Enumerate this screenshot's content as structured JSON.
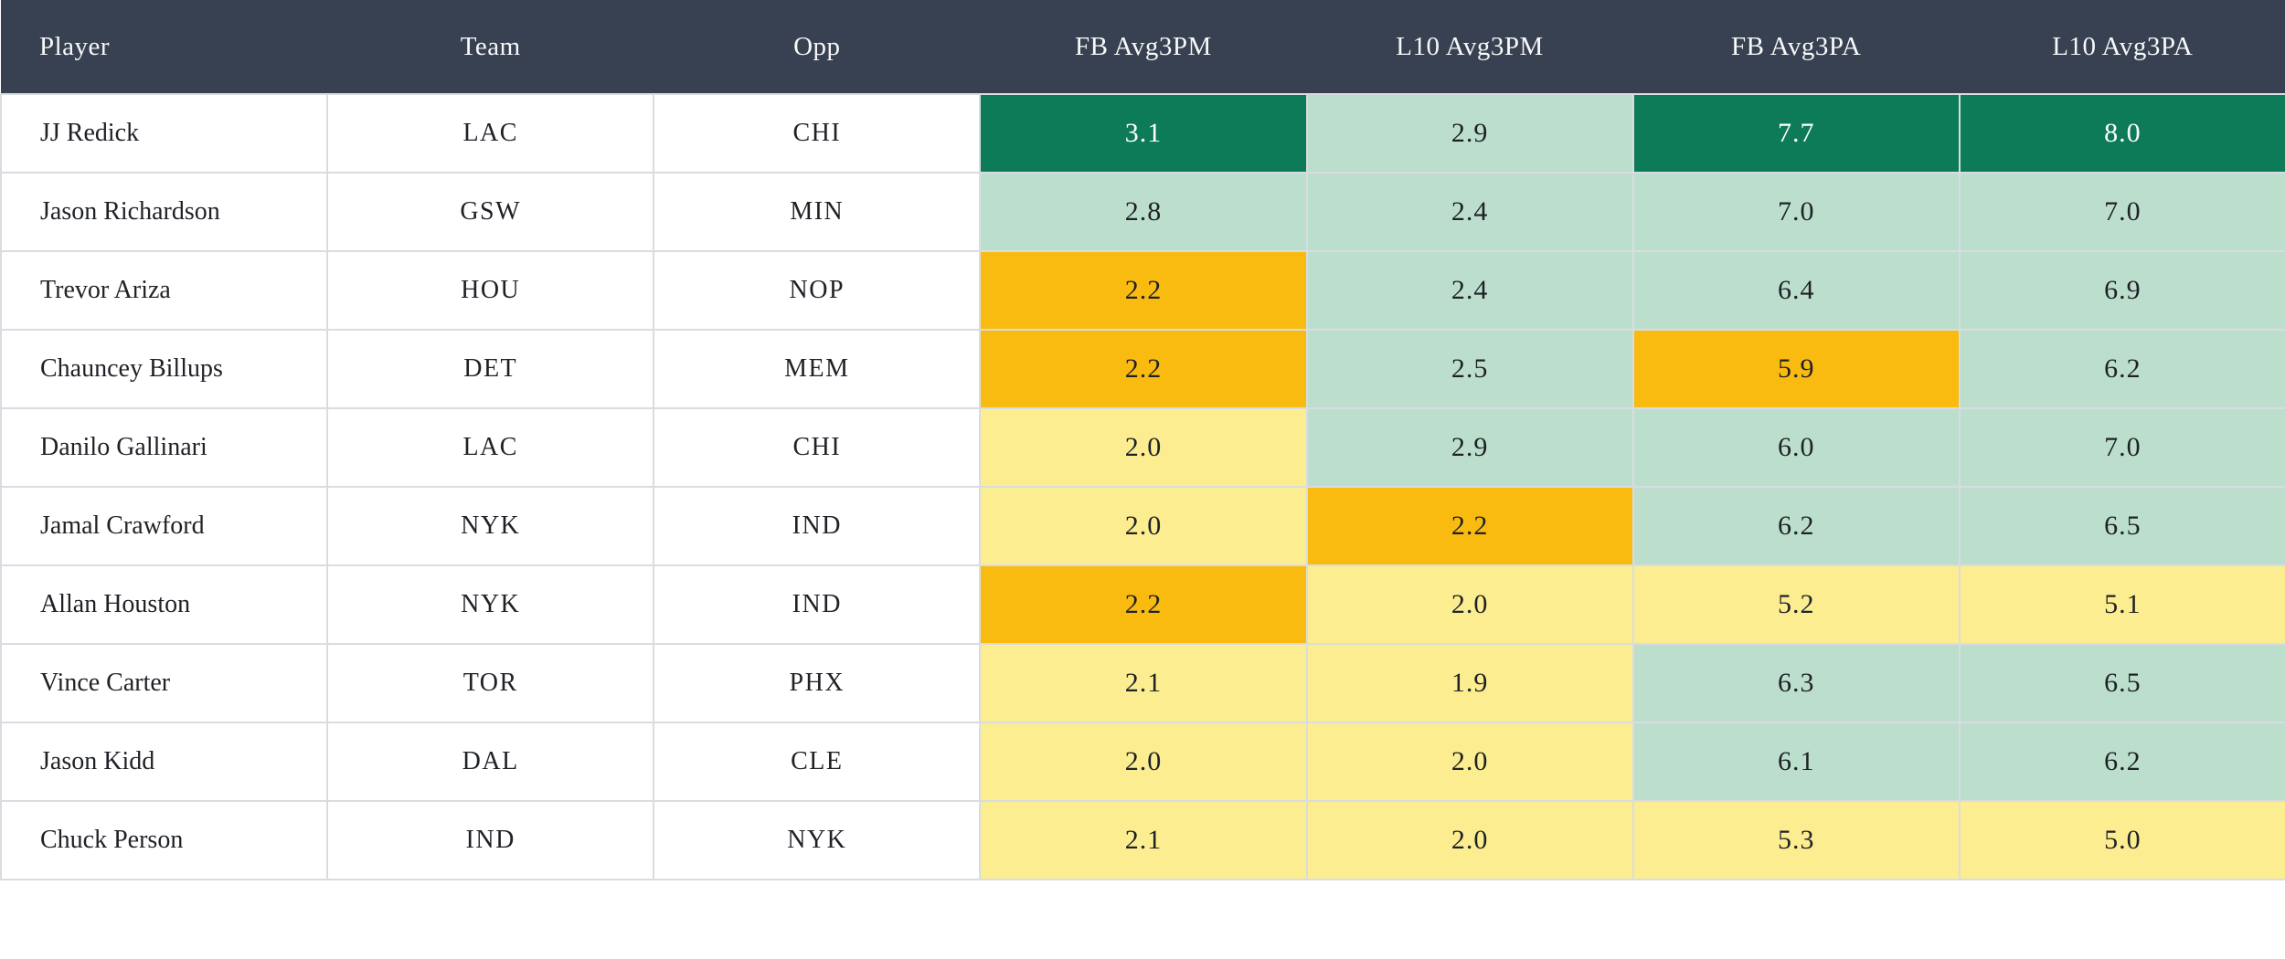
{
  "colors": {
    "header-bg": "#374151",
    "header-text": "#f7f8f9",
    "border": "#d9dce1",
    "dark-green": "#0d7a58",
    "light-green": "#bcdfcd",
    "amber": "#fabb10",
    "light-yellow": "#fcee90",
    "dark-text": "#1e2126",
    "light-text": "#ffffff"
  },
  "table": {
    "columns": [
      {
        "key": "player",
        "label": "Player"
      },
      {
        "key": "team",
        "label": "Team"
      },
      {
        "key": "opp",
        "label": "Opp"
      },
      {
        "key": "fb_avg3pm",
        "label": "FB Avg3PM"
      },
      {
        "key": "l10_avg3pm",
        "label": "L10 Avg3PM"
      },
      {
        "key": "fb_avg3pa",
        "label": "FB Avg3PA"
      },
      {
        "key": "l10_avg3pa",
        "label": "L10 Avg3PA"
      }
    ],
    "rows": [
      {
        "player": "JJ Redick",
        "team": "LAC",
        "opp": "CHI",
        "fb_avg3pm": {
          "value": "3.1",
          "tone": "dark-green"
        },
        "l10_avg3pm": {
          "value": "2.9",
          "tone": "light-green"
        },
        "fb_avg3pa": {
          "value": "7.7",
          "tone": "dark-green"
        },
        "l10_avg3pa": {
          "value": "8.0",
          "tone": "dark-green"
        }
      },
      {
        "player": "Jason Richardson",
        "team": "GSW",
        "opp": "MIN",
        "fb_avg3pm": {
          "value": "2.8",
          "tone": "light-green"
        },
        "l10_avg3pm": {
          "value": "2.4",
          "tone": "light-green"
        },
        "fb_avg3pa": {
          "value": "7.0",
          "tone": "light-green"
        },
        "l10_avg3pa": {
          "value": "7.0",
          "tone": "light-green"
        }
      },
      {
        "player": "Trevor Ariza",
        "team": "HOU",
        "opp": "NOP",
        "fb_avg3pm": {
          "value": "2.2",
          "tone": "amber"
        },
        "l10_avg3pm": {
          "value": "2.4",
          "tone": "light-green"
        },
        "fb_avg3pa": {
          "value": "6.4",
          "tone": "light-green"
        },
        "l10_avg3pa": {
          "value": "6.9",
          "tone": "light-green"
        }
      },
      {
        "player": "Chauncey Billups",
        "team": "DET",
        "opp": "MEM",
        "fb_avg3pm": {
          "value": "2.2",
          "tone": "amber"
        },
        "l10_avg3pm": {
          "value": "2.5",
          "tone": "light-green"
        },
        "fb_avg3pa": {
          "value": "5.9",
          "tone": "amber"
        },
        "l10_avg3pa": {
          "value": "6.2",
          "tone": "light-green"
        }
      },
      {
        "player": "Danilo Gallinari",
        "team": "LAC",
        "opp": "CHI",
        "fb_avg3pm": {
          "value": "2.0",
          "tone": "light-yellow"
        },
        "l10_avg3pm": {
          "value": "2.9",
          "tone": "light-green"
        },
        "fb_avg3pa": {
          "value": "6.0",
          "tone": "light-green"
        },
        "l10_avg3pa": {
          "value": "7.0",
          "tone": "light-green"
        }
      },
      {
        "player": "Jamal Crawford",
        "team": "NYK",
        "opp": "IND",
        "fb_avg3pm": {
          "value": "2.0",
          "tone": "light-yellow"
        },
        "l10_avg3pm": {
          "value": "2.2",
          "tone": "amber"
        },
        "fb_avg3pa": {
          "value": "6.2",
          "tone": "light-green"
        },
        "l10_avg3pa": {
          "value": "6.5",
          "tone": "light-green"
        }
      },
      {
        "player": "Allan Houston",
        "team": "NYK",
        "opp": "IND",
        "fb_avg3pm": {
          "value": "2.2",
          "tone": "amber"
        },
        "l10_avg3pm": {
          "value": "2.0",
          "tone": "light-yellow"
        },
        "fb_avg3pa": {
          "value": "5.2",
          "tone": "light-yellow"
        },
        "l10_avg3pa": {
          "value": "5.1",
          "tone": "light-yellow"
        }
      },
      {
        "player": "Vince Carter",
        "team": "TOR",
        "opp": "PHX",
        "fb_avg3pm": {
          "value": "2.1",
          "tone": "light-yellow"
        },
        "l10_avg3pm": {
          "value": "1.9",
          "tone": "light-yellow"
        },
        "fb_avg3pa": {
          "value": "6.3",
          "tone": "light-green"
        },
        "l10_avg3pa": {
          "value": "6.5",
          "tone": "light-green"
        }
      },
      {
        "player": "Jason Kidd",
        "team": "DAL",
        "opp": "CLE",
        "fb_avg3pm": {
          "value": "2.0",
          "tone": "light-yellow"
        },
        "l10_avg3pm": {
          "value": "2.0",
          "tone": "light-yellow"
        },
        "fb_avg3pa": {
          "value": "6.1",
          "tone": "light-green"
        },
        "l10_avg3pa": {
          "value": "6.2",
          "tone": "light-green"
        }
      },
      {
        "player": "Chuck Person",
        "team": "IND",
        "opp": "NYK",
        "fb_avg3pm": {
          "value": "2.1",
          "tone": "light-yellow"
        },
        "l10_avg3pm": {
          "value": "2.0",
          "tone": "light-yellow"
        },
        "fb_avg3pa": {
          "value": "5.3",
          "tone": "light-yellow"
        },
        "l10_avg3pa": {
          "value": "5.0",
          "tone": "light-yellow"
        }
      }
    ]
  }
}
